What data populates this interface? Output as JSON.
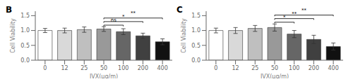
{
  "chart_data": [
    {
      "type": "bar",
      "title": "B",
      "categories": [
        "0",
        "12",
        "25",
        "50",
        "100",
        "200",
        "400"
      ],
      "values": [
        1.0,
        1.0,
        1.03,
        1.05,
        0.96,
        0.82,
        0.62
      ],
      "errors": [
        0.07,
        0.08,
        0.09,
        0.08,
        0.1,
        0.09,
        0.1
      ],
      "colors": [
        "#ffffff",
        "#d9d9d9",
        "#bfbfbf",
        "#999999",
        "#666666",
        "#404040",
        "#111111"
      ],
      "ylabel": "Cell Viability",
      "xlabel": "IVX(μg/m)",
      "ylim": [
        0.0,
        1.65
      ],
      "yticks": [
        {
          "value": 0.0,
          "label": "0.0"
        },
        0.5,
        {
          "value": 1.0,
          "label": "1.0"
        },
        1.5
      ],
      "grid": false,
      "annotations": [
        {
          "x1": "50",
          "x2": "100",
          "y": 1.18,
          "label": "ns"
        },
        {
          "x1": "50",
          "x2": "200",
          "y": 1.3,
          "label": "*"
        },
        {
          "x1": "50",
          "x2": "400",
          "y": 1.42,
          "label": "**"
        }
      ]
    },
    {
      "type": "bar",
      "title": "C",
      "categories": [
        "0",
        "12",
        "25",
        "50",
        "100",
        "200",
        "400"
      ],
      "values": [
        1.0,
        1.0,
        1.07,
        1.1,
        0.88,
        0.7,
        0.46
      ],
      "errors": [
        0.08,
        0.1,
        0.1,
        0.12,
        0.12,
        0.14,
        0.12
      ],
      "colors": [
        "#ffffff",
        "#d9d9d9",
        "#bfbfbf",
        "#999999",
        "#666666",
        "#404040",
        "#111111"
      ],
      "ylabel": "Cell Viability",
      "xlabel": "IVX(μg/m)",
      "ylim": [
        0.0,
        1.65
      ],
      "yticks": [
        {
          "value": 0.0,
          "label": "0.0"
        },
        0.5,
        {
          "value": 1.0,
          "label": "1.0"
        },
        1.5
      ],
      "grid": false,
      "annotations": [
        {
          "x1": "50",
          "x2": "100",
          "y": 1.28,
          "label": "*"
        },
        {
          "x1": "50",
          "x2": "200",
          "y": 1.4,
          "label": "**"
        },
        {
          "x1": "50",
          "x2": "400",
          "y": 1.52,
          "label": "**"
        }
      ]
    }
  ]
}
